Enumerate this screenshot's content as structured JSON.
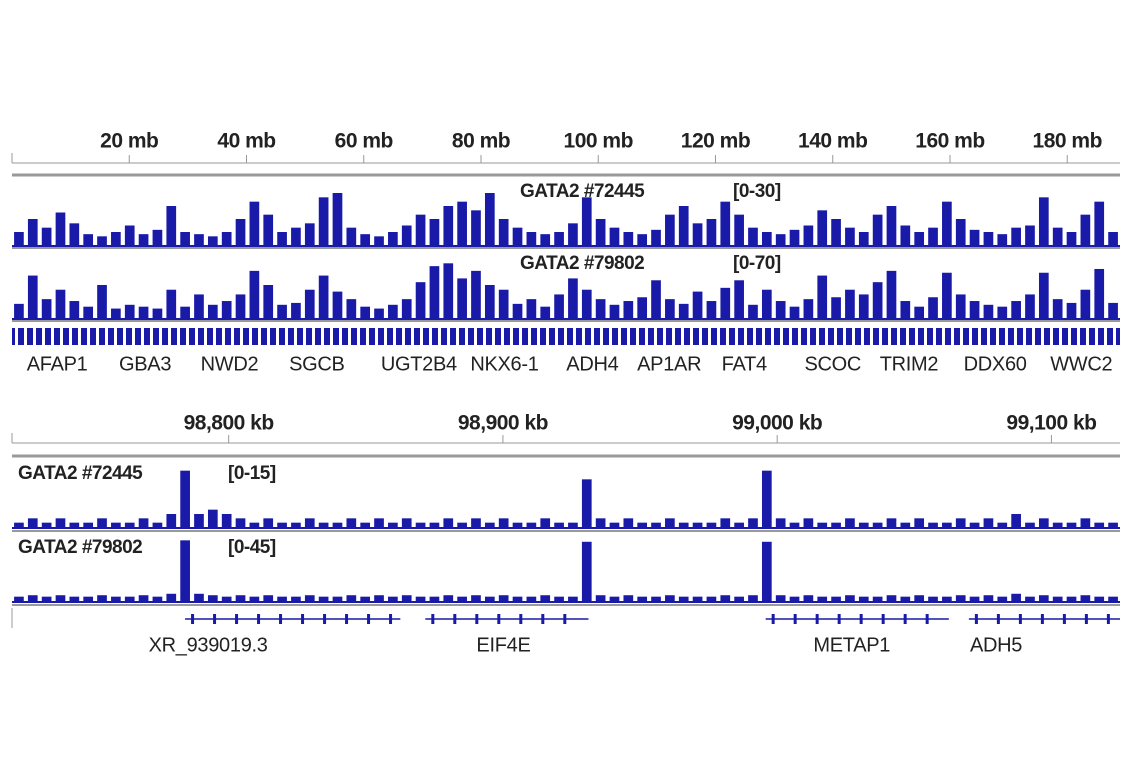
{
  "chart_data": [
    {
      "type": "genome-track",
      "color": "#1a1aa8",
      "xlim": [
        0,
        189
      ],
      "xticks": [
        {
          "value": 20,
          "label": "20 mb"
        },
        {
          "value": 40,
          "label": "40 mb"
        },
        {
          "value": 60,
          "label": "60 mb"
        },
        {
          "value": 80,
          "label": "80 mb"
        },
        {
          "value": 100,
          "label": "100 mb"
        },
        {
          "value": 120,
          "label": "120 mb"
        },
        {
          "value": 140,
          "label": "140 mb"
        },
        {
          "value": 160,
          "label": "160 mb"
        },
        {
          "value": 180,
          "label": "180 mb"
        }
      ],
      "tracks": [
        {
          "name": "GATA2 #72445",
          "range": "[0-30]",
          "ylim": [
            0,
            30
          ],
          "values": [
            6,
            12,
            8,
            15,
            10,
            5,
            4,
            6,
            9,
            5,
            7,
            18,
            6,
            5,
            4,
            6,
            12,
            20,
            14,
            6,
            8,
            10,
            22,
            24,
            8,
            5,
            4,
            6,
            9,
            14,
            12,
            18,
            20,
            16,
            24,
            12,
            8,
            6,
            5,
            6,
            10,
            22,
            12,
            8,
            6,
            5,
            7,
            14,
            18,
            10,
            12,
            20,
            14,
            8,
            6,
            5,
            7,
            9,
            16,
            12,
            8,
            6,
            14,
            18,
            9,
            6,
            8,
            20,
            12,
            7,
            6,
            5,
            8,
            9,
            22,
            8,
            6,
            14,
            20,
            6
          ]
        },
        {
          "name": "GATA2 #79802",
          "range": "[0-70]",
          "ylim": [
            0,
            70
          ],
          "values": [
            15,
            45,
            20,
            30,
            18,
            12,
            35,
            10,
            14,
            12,
            10,
            30,
            12,
            25,
            14,
            18,
            25,
            50,
            35,
            14,
            16,
            30,
            45,
            28,
            20,
            12,
            10,
            14,
            20,
            38,
            55,
            58,
            42,
            50,
            35,
            30,
            15,
            20,
            12,
            25,
            42,
            30,
            20,
            14,
            18,
            22,
            40,
            20,
            15,
            28,
            18,
            32,
            40,
            14,
            30,
            18,
            12,
            20,
            45,
            22,
            30,
            25,
            38,
            50,
            18,
            12,
            22,
            48,
            25,
            18,
            14,
            12,
            18,
            25,
            48,
            20,
            16,
            30,
            52,
            16
          ]
        }
      ],
      "genes": [
        {
          "name": "AFAP1",
          "x": 7.7
        },
        {
          "name": "GBA3",
          "x": 22.7
        },
        {
          "name": "NWD2",
          "x": 37.1
        },
        {
          "name": "SGCB",
          "x": 52
        },
        {
          "name": "UGT2B4",
          "x": 69.4
        },
        {
          "name": "NKX6-1",
          "x": 84
        },
        {
          "name": "ADH4",
          "x": 99
        },
        {
          "name": "AP1AR",
          "x": 112.1
        },
        {
          "name": "FAT4",
          "x": 124.9
        },
        {
          "name": "SCOC",
          "x": 140
        },
        {
          "name": "TRIM2",
          "x": 153
        },
        {
          "name": "DDX60",
          "x": 167.7
        },
        {
          "name": "WWC2",
          "x": 182.4
        }
      ]
    },
    {
      "type": "genome-track",
      "color": "#1a1aa8",
      "xlim": [
        98721,
        99125
      ],
      "xticks": [
        {
          "value": 98800,
          "label": "98,800 kb"
        },
        {
          "value": 98900,
          "label": "98,900 kb"
        },
        {
          "value": 99000,
          "label": "99,000 kb"
        },
        {
          "value": 99100,
          "label": "99,100 kb"
        }
      ],
      "tracks": [
        {
          "name": "GATA2 #72445",
          "range": "[0-15]",
          "ylim": [
            0,
            15
          ],
          "values": [
            1,
            2,
            1,
            2,
            1,
            1,
            2,
            1,
            1,
            2,
            1,
            3,
            13,
            3,
            4,
            3,
            2,
            1,
            2,
            1,
            1,
            2,
            1,
            1,
            2,
            1,
            2,
            1,
            2,
            1,
            1,
            2,
            1,
            2,
            1,
            2,
            1,
            1,
            2,
            1,
            1,
            11,
            2,
            1,
            2,
            1,
            1,
            2,
            1,
            1,
            1,
            2,
            1,
            2,
            13,
            2,
            1,
            2,
            1,
            1,
            2,
            1,
            1,
            2,
            1,
            2,
            1,
            1,
            2,
            1,
            2,
            1,
            3,
            1,
            2,
            1,
            1,
            2,
            1,
            1
          ]
        },
        {
          "name": "GATA2 #79802",
          "range": "[0-45]",
          "ylim": [
            0,
            45
          ],
          "values": [
            3,
            4,
            3,
            4,
            3,
            3,
            4,
            3,
            3,
            4,
            3,
            5,
            42,
            5,
            4,
            3,
            4,
            3,
            4,
            3,
            3,
            4,
            3,
            3,
            4,
            3,
            4,
            3,
            4,
            3,
            3,
            4,
            3,
            4,
            3,
            4,
            3,
            3,
            4,
            3,
            3,
            41,
            4,
            3,
            4,
            3,
            3,
            4,
            3,
            3,
            3,
            4,
            3,
            4,
            41,
            4,
            3,
            4,
            3,
            3,
            4,
            3,
            3,
            4,
            3,
            4,
            3,
            3,
            4,
            3,
            4,
            3,
            5,
            3,
            4,
            3,
            3,
            4,
            3,
            3
          ]
        }
      ],
      "genes": [
        {
          "name": "XR_939019.3",
          "start": 98784.1,
          "end": 98862.6,
          "label_x": 98792.5
        },
        {
          "name": "EIF4E",
          "start": 98871.7,
          "end": 98931.2,
          "label_x": 98900.2
        },
        {
          "name": "METAP1",
          "start": 98995.8,
          "end": 99062.6,
          "label_x": 99027.2
        },
        {
          "name": "ADH5",
          "start": 99069.9,
          "end": 99125,
          "label_x": 99079.8
        }
      ]
    }
  ]
}
